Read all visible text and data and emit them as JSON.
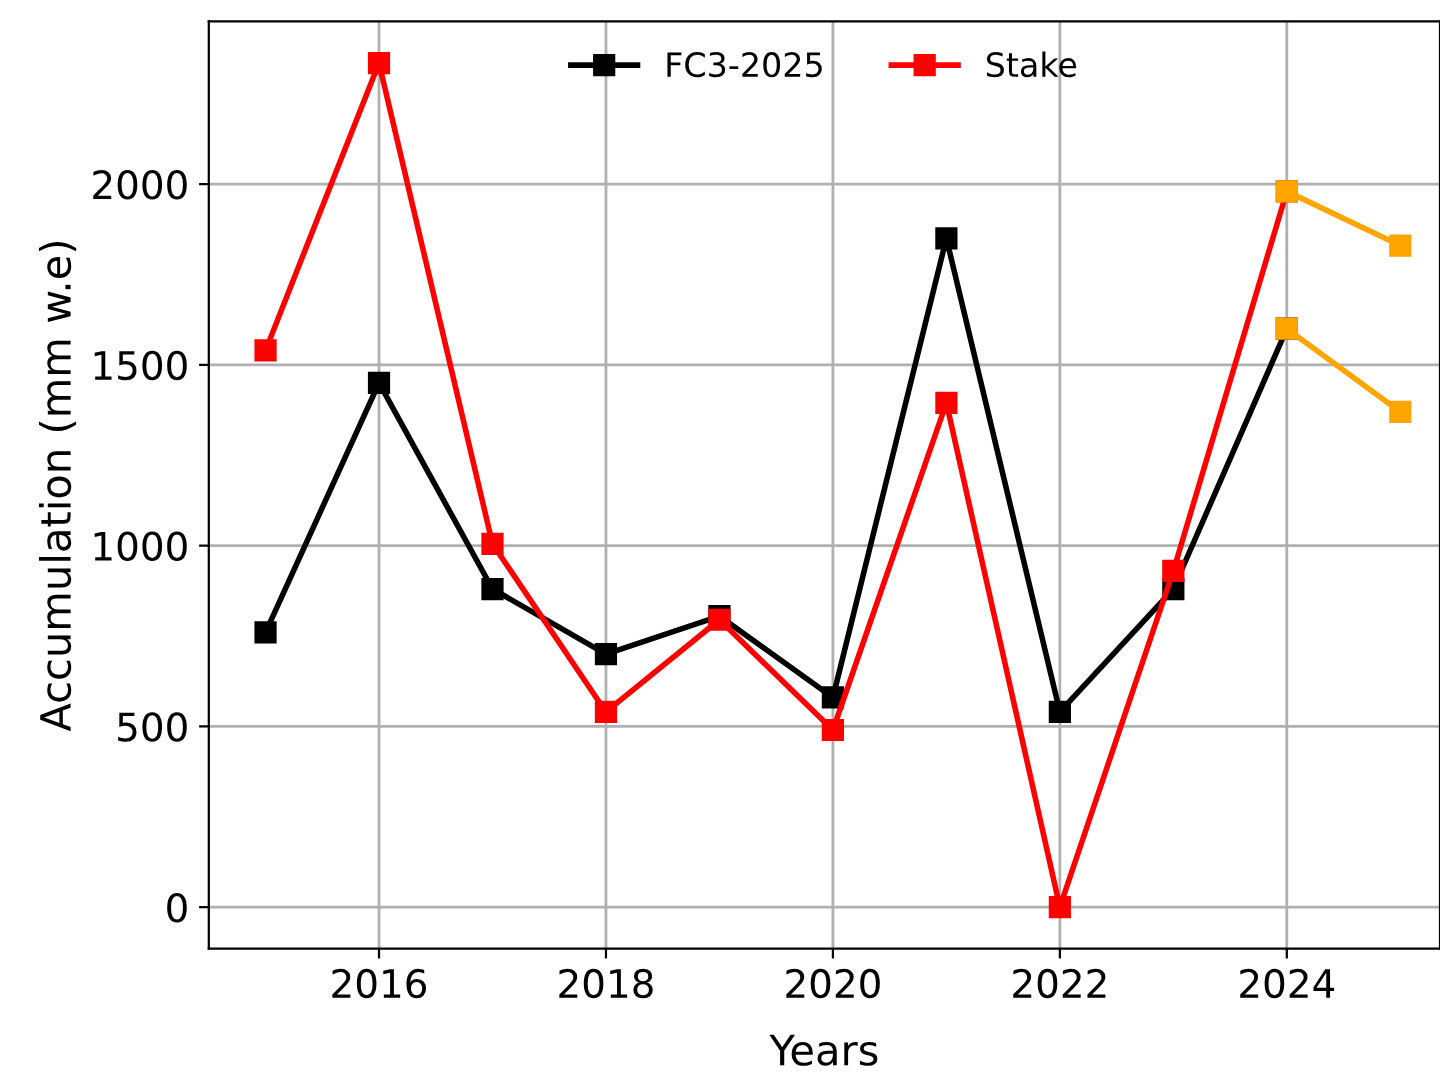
{
  "chart_data": {
    "type": "line",
    "xlabel": "Years",
    "ylabel": "Accumulation (mm w.e)",
    "series": [
      {
        "name": "FC3-2025",
        "color": "#000000",
        "x": [
          2015,
          2016,
          2017,
          2018,
          2019,
          2020,
          2021,
          2022,
          2023,
          2024
        ],
        "values": [
          760,
          1450,
          880,
          700,
          805,
          580,
          1850,
          540,
          880,
          1600
        ]
      },
      {
        "name": "Stake",
        "color": "#ff0000",
        "x": [
          2015,
          2016,
          2017,
          2018,
          2019,
          2020,
          2021,
          2022,
          2023,
          2024
        ],
        "values": [
          1540,
          2335,
          1005,
          540,
          795,
          490,
          1395,
          0,
          930,
          1980
        ]
      },
      {
        "color": "#ffa500",
        "x": [
          2024,
          2025
        ],
        "values": [
          1600,
          1370
        ]
      },
      {
        "color": "#ffa500",
        "x": [
          2024,
          2025
        ],
        "values": [
          1980,
          1830
        ]
      }
    ],
    "xlim": [
      2014.5,
      2025.35
    ],
    "xticks": [
      2016,
      2018,
      2020,
      2022,
      2024
    ],
    "ylim": [
      -115,
      2450
    ],
    "yticks": [
      0,
      500,
      1000,
      1500,
      2000
    ],
    "grid": true,
    "legend": "top",
    "marker": "square",
    "line_style": "solid"
  }
}
